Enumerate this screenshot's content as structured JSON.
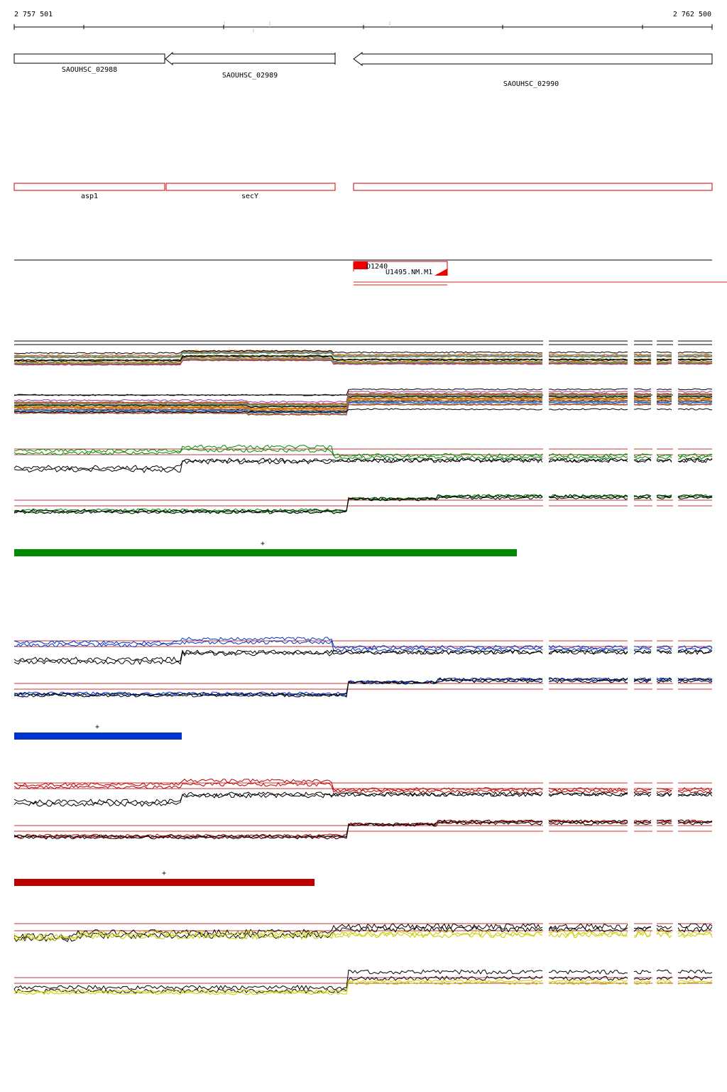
{
  "coordinates": {
    "start": "2 757 501",
    "end": "2 762 500"
  },
  "genes": [
    {
      "id": "SAOUHSC_02988",
      "strand": "-"
    },
    {
      "id": "SAOUHSC_02989",
      "strand": "-"
    },
    {
      "id": "SAOUHSC_02990",
      "strand": "-"
    }
  ],
  "gene_names": [
    "asp1",
    "secY",
    ""
  ],
  "features": {
    "probe": "D1240",
    "transcript": "U1495.NM.M1"
  },
  "colors": {
    "gene_outline": "#000000",
    "name_track": "#cc0000",
    "group1": "#008800",
    "group2": "#0033cc",
    "group3": "#bb0000",
    "group4": "#cccc00",
    "reference_line": "#cc3333"
  },
  "tracks": [
    {
      "name": "all-profiles",
      "color": "#888888"
    },
    {
      "name": "group-green",
      "color": "#008800",
      "bar_fraction": 0.72
    },
    {
      "name": "group-blue",
      "color": "#0033cc",
      "bar_fraction": 0.24
    },
    {
      "name": "group-red",
      "color": "#bb0000",
      "bar_fraction": 0.43
    },
    {
      "name": "group-yellow",
      "color": "#cccc00"
    }
  ],
  "bar_marker": "+"
}
